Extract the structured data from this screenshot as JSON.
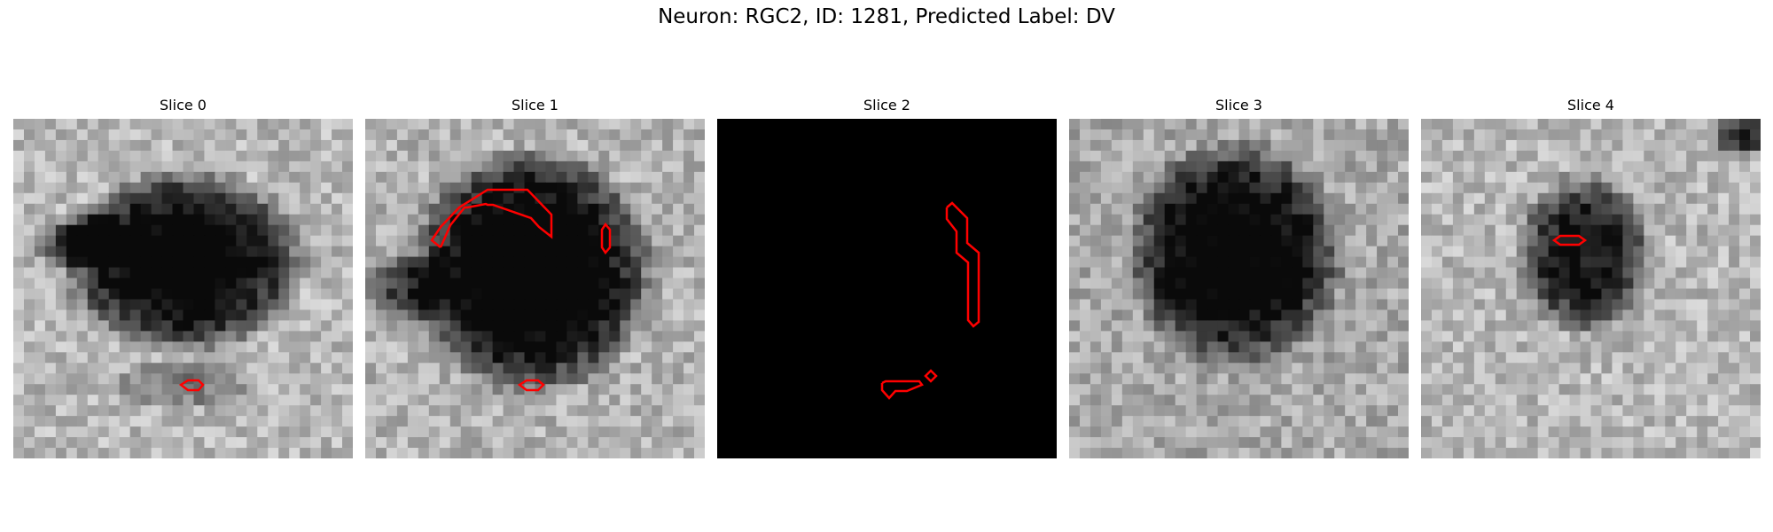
{
  "figure": {
    "title": "Neuron: RGC2, ID: 1281, Predicted Label: DV"
  },
  "slices": [
    {
      "label": "Slice 0",
      "kind": "grayscale-microscopy",
      "contours": 1
    },
    {
      "label": "Slice 1",
      "kind": "grayscale-microscopy",
      "contours": 3
    },
    {
      "label": "Slice 2",
      "kind": "black-empty",
      "contours": 3
    },
    {
      "label": "Slice 3",
      "kind": "grayscale-microscopy",
      "contours": 0
    },
    {
      "label": "Slice 4",
      "kind": "grayscale-microscopy",
      "contours": 1
    }
  ],
  "colors": {
    "contour": "#ff0000",
    "background": "#ffffff"
  }
}
